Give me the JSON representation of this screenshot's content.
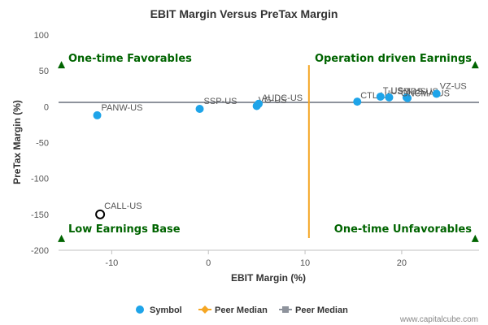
{
  "chart_data": {
    "type": "scatter",
    "title": "EBIT Margin Versus PreTax Margin",
    "xlabel": "EBIT Margin (%)",
    "ylabel": "PreTax Margin (%)",
    "xlim": [
      -15.5,
      28
    ],
    "ylim": [
      -200,
      100
    ],
    "xticks": [
      -10,
      0,
      10,
      20
    ],
    "yticks": [
      100,
      50,
      0,
      -50,
      -100,
      -150,
      -200
    ],
    "grid": false,
    "points": [
      {
        "label": "PANW-US",
        "x": -11.5,
        "y": -12,
        "style": "filled"
      },
      {
        "label": "CALL-US",
        "x": -11.2,
        "y": -150,
        "style": "hollow"
      },
      {
        "label": "SSP-US",
        "x": -0.9,
        "y": -3,
        "style": "filled"
      },
      {
        "label": "VG-US",
        "x": 5.0,
        "y": 1,
        "style": "filled"
      },
      {
        "label": "AUDC-US",
        "x": 5.2,
        "y": 4,
        "style": "filled"
      },
      {
        "label": "CTL-US",
        "x": 15.4,
        "y": 7,
        "style": "filled"
      },
      {
        "label": "T-US",
        "x": 17.8,
        "y": 14,
        "style": "filled"
      },
      {
        "label": "USM-US",
        "x": 18.7,
        "y": 13,
        "style": "filled"
      },
      {
        "label": "TDS-US",
        "x": 20.5,
        "y": 13,
        "style": "filled"
      },
      {
        "label": "GNCMA-US",
        "x": 20.6,
        "y": 12,
        "style": "filled"
      },
      {
        "label": "VZ-US",
        "x": 23.6,
        "y": 18,
        "style": "filled"
      }
    ],
    "peer_median_x": 10.4,
    "peer_median_y": 6,
    "quadrants": {
      "top_left": "One-time Favorables",
      "top_right": "Operation driven Earnings",
      "bottom_left": "Low Earnings Base",
      "bottom_right": "One-time Unfavorables"
    },
    "legend": {
      "placement": "bottom",
      "items": [
        {
          "label": "Symbol",
          "marker": "circle",
          "color": "#1ea4e9"
        },
        {
          "label": "Peer Median",
          "marker": "diamond-line",
          "color": "#f5a623"
        },
        {
          "label": "Peer Median",
          "marker": "square-line",
          "color": "#8e939c"
        }
      ]
    },
    "colors": {
      "point": "#1ea4e9",
      "vertical_median": "#f5a623",
      "horizontal_median": "#8e939c",
      "quadrant_text": "#006400"
    }
  },
  "watermark": "www.capitalcube.com"
}
